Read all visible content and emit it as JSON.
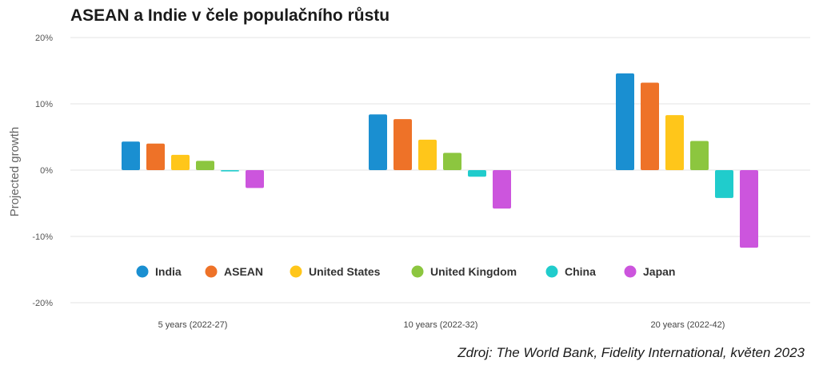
{
  "chart_data": {
    "type": "bar",
    "title": "ASEAN a Indie v čele populačního růstu",
    "ylabel": "Projected growth",
    "xlabel": "",
    "ylim": [
      -20,
      20
    ],
    "yticks": [
      20,
      10,
      0,
      -10,
      -20
    ],
    "ytick_labels": [
      "20%",
      "10%",
      "0%",
      "-10%",
      "-20%"
    ],
    "grid": true,
    "legend_position": "inside-bottom",
    "categories": [
      "5 years (2022-27)",
      "10 years (2022-32)",
      "20 years (2022-42)"
    ],
    "series": [
      {
        "name": "India",
        "color": "#1a8fd1",
        "values": [
          4.3,
          8.4,
          14.6
        ]
      },
      {
        "name": "ASEAN",
        "color": "#ee7228",
        "values": [
          4.0,
          7.7,
          13.2
        ]
      },
      {
        "name": "United States",
        "color": "#ffc61a",
        "values": [
          2.3,
          4.6,
          8.3
        ]
      },
      {
        "name": "United Kingdom",
        "color": "#8cc63f",
        "values": [
          1.4,
          2.6,
          4.4
        ]
      },
      {
        "name": "China",
        "color": "#20cccc",
        "values": [
          -0.2,
          -1.0,
          -4.2
        ]
      },
      {
        "name": "Japan",
        "color": "#cc55dd",
        "values": [
          -2.7,
          -5.8,
          -11.7
        ]
      }
    ]
  },
  "source": "Zdroj: The World Bank, Fidelity International, květen 2023"
}
